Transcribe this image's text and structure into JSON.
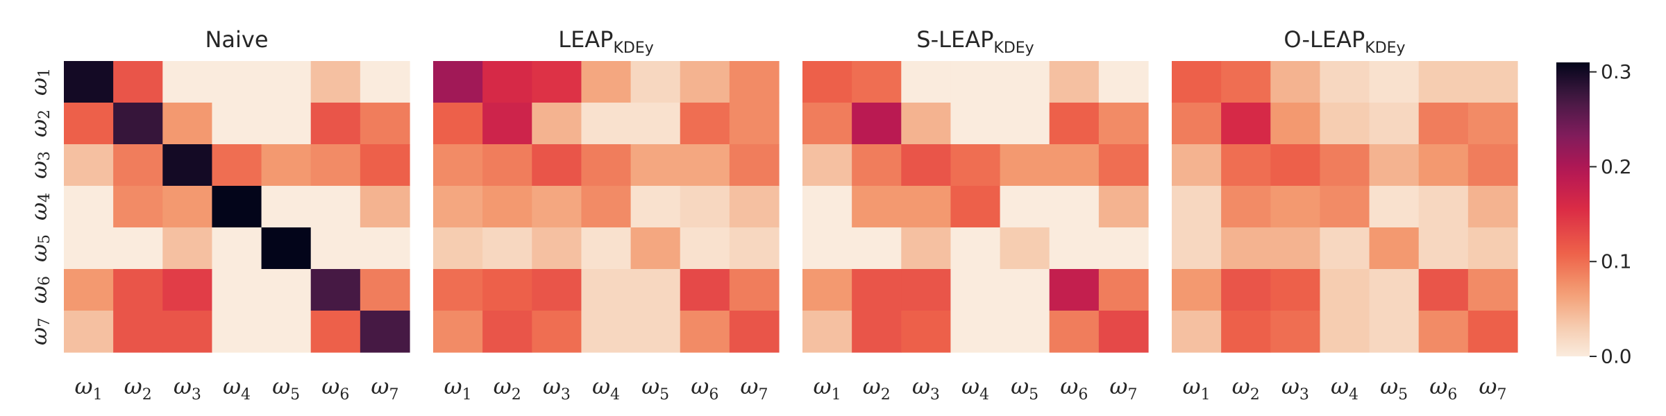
{
  "chart_data": {
    "type": "heatmap",
    "row_labels": [
      {
        "base": "ω",
        "sub": "1"
      },
      {
        "base": "ω",
        "sub": "2"
      },
      {
        "base": "ω",
        "sub": "3"
      },
      {
        "base": "ω",
        "sub": "4"
      },
      {
        "base": "ω",
        "sub": "5"
      },
      {
        "base": "ω",
        "sub": "6"
      },
      {
        "base": "ω",
        "sub": "7"
      }
    ],
    "col_labels": [
      {
        "base": "ω",
        "sub": "1"
      },
      {
        "base": "ω",
        "sub": "2"
      },
      {
        "base": "ω",
        "sub": "3"
      },
      {
        "base": "ω",
        "sub": "4"
      },
      {
        "base": "ω",
        "sub": "5"
      },
      {
        "base": "ω",
        "sub": "6"
      },
      {
        "base": "ω",
        "sub": "7"
      }
    ],
    "colorscale": {
      "range": [
        0,
        0.31
      ],
      "ticks": [
        "0.0",
        "0.1",
        "0.2",
        "0.3"
      ],
      "tick_values": [
        0,
        0.1,
        0.2,
        0.3
      ],
      "colormap": "rocket_r"
    },
    "panels": [
      {
        "title_main": "Naive",
        "title_sub": "",
        "values": [
          [
            0.3,
            0.12,
            0.0,
            0.0,
            0.0,
            0.04,
            0.0
          ],
          [
            0.11,
            0.28,
            0.07,
            0.0,
            0.0,
            0.12,
            0.09
          ],
          [
            0.04,
            0.09,
            0.3,
            0.1,
            0.07,
            0.08,
            0.11
          ],
          [
            0.0,
            0.08,
            0.07,
            0.31,
            0.0,
            0.0,
            0.05
          ],
          [
            0.0,
            0.0,
            0.04,
            0.0,
            0.31,
            0.0,
            0.0
          ],
          [
            0.07,
            0.12,
            0.14,
            0.0,
            0.0,
            0.27,
            0.09
          ],
          [
            0.04,
            0.12,
            0.12,
            0.0,
            0.0,
            0.11,
            0.27
          ]
        ]
      },
      {
        "title_main": "LEAP",
        "title_sub": "KDEy",
        "values": [
          [
            0.21,
            0.16,
            0.15,
            0.06,
            0.02,
            0.05,
            0.08
          ],
          [
            0.11,
            0.17,
            0.05,
            0.01,
            0.01,
            0.1,
            0.08
          ],
          [
            0.08,
            0.09,
            0.12,
            0.09,
            0.06,
            0.06,
            0.09
          ],
          [
            0.06,
            0.07,
            0.06,
            0.08,
            0.01,
            0.02,
            0.04
          ],
          [
            0.03,
            0.02,
            0.04,
            0.01,
            0.06,
            0.01,
            0.02
          ],
          [
            0.1,
            0.11,
            0.12,
            0.02,
            0.02,
            0.13,
            0.09
          ],
          [
            0.08,
            0.12,
            0.1,
            0.02,
            0.02,
            0.08,
            0.12
          ]
        ]
      },
      {
        "title_main": "S-LEAP",
        "title_sub": "KDEy",
        "values": [
          [
            0.11,
            0.1,
            0.0,
            0.0,
            0.0,
            0.04,
            0.0
          ],
          [
            0.09,
            0.19,
            0.05,
            0.0,
            0.0,
            0.11,
            0.08
          ],
          [
            0.04,
            0.09,
            0.12,
            0.1,
            0.07,
            0.07,
            0.1
          ],
          [
            0.0,
            0.07,
            0.07,
            0.11,
            0.0,
            0.0,
            0.05
          ],
          [
            0.0,
            0.0,
            0.04,
            0.0,
            0.03,
            0.0,
            0.0
          ],
          [
            0.07,
            0.12,
            0.12,
            0.0,
            0.0,
            0.18,
            0.09
          ],
          [
            0.04,
            0.12,
            0.11,
            0.0,
            0.0,
            0.09,
            0.13
          ]
        ]
      },
      {
        "title_main": "O-LEAP",
        "title_sub": "KDEy",
        "values": [
          [
            0.11,
            0.1,
            0.05,
            0.02,
            0.01,
            0.03,
            0.03
          ],
          [
            0.09,
            0.16,
            0.07,
            0.03,
            0.02,
            0.09,
            0.08
          ],
          [
            0.05,
            0.1,
            0.11,
            0.09,
            0.05,
            0.07,
            0.09
          ],
          [
            0.02,
            0.08,
            0.07,
            0.08,
            0.01,
            0.02,
            0.05
          ],
          [
            0.02,
            0.05,
            0.05,
            0.02,
            0.07,
            0.02,
            0.03
          ],
          [
            0.07,
            0.12,
            0.11,
            0.03,
            0.02,
            0.12,
            0.08
          ],
          [
            0.04,
            0.11,
            0.1,
            0.03,
            0.02,
            0.08,
            0.11
          ]
        ]
      }
    ]
  }
}
